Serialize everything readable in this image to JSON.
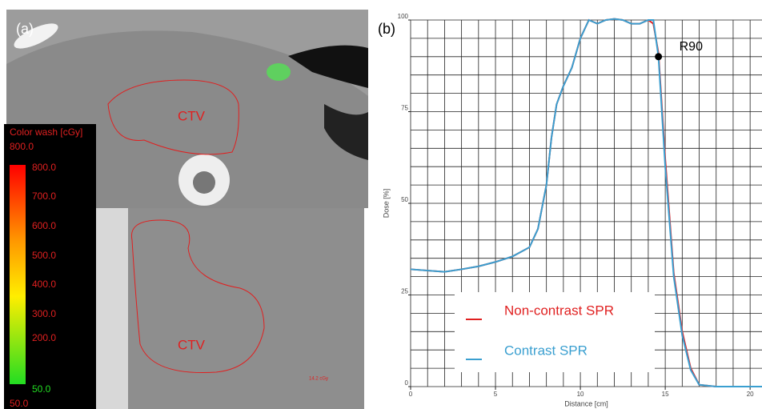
{
  "panel_a": {
    "label": "(a)",
    "colorwash": {
      "title": "Color wash [cGy]",
      "max_label": "800.0",
      "ticks": [
        "800.0",
        "700.0",
        "600.0",
        "500.0",
        "400.0",
        "300.0",
        "200.0",
        "50.0"
      ],
      "min_label": "50.0"
    },
    "regions": [
      "CTV",
      "CTV"
    ],
    "dose_label": "14.2 cGy"
  },
  "chart_data": {
    "type": "line",
    "panel_label": "(b)",
    "x_label": "Distance [cm]",
    "y_label": "Dose [%]",
    "x": [
      0,
      2,
      3,
      4,
      5,
      6,
      7,
      7.5,
      8,
      8.3,
      8.6,
      9,
      9.5,
      10,
      10.5,
      11,
      11.5,
      12,
      12.5,
      13,
      13.5,
      14,
      14.3,
      14.6,
      15,
      15.5,
      16,
      16.5,
      17,
      18,
      20,
      20.7
    ],
    "series": [
      {
        "name": "Non-contrast SPR",
        "color": "#e02020",
        "values": [
          32,
          31.3,
          32,
          32.8,
          34,
          35.5,
          38,
          43,
          55,
          68,
          77,
          82,
          87,
          95,
          100,
          99,
          100,
          100.3,
          100,
          99,
          99,
          100,
          99,
          91,
          62,
          31,
          15,
          5,
          0.5,
          0,
          0,
          0
        ]
      },
      {
        "name": "Contrast SPR",
        "color": "#3a9fd0",
        "values": [
          32,
          31.3,
          32,
          32.8,
          34,
          35.5,
          38,
          43,
          55,
          68,
          77,
          82,
          87,
          95,
          100,
          99,
          100,
          100.3,
          100,
          99,
          99,
          100,
          100,
          90,
          60,
          30,
          14,
          4.5,
          0.5,
          0,
          0,
          0
        ]
      }
    ],
    "annotations": [
      {
        "text": "R90",
        "x": 14.6,
        "y": 90
      }
    ],
    "xlim": [
      0,
      20.7
    ],
    "ylim": [
      0,
      100
    ],
    "xticks": [
      0,
      5,
      10,
      15,
      20
    ],
    "yticks": [
      0,
      25,
      50,
      75,
      100
    ],
    "grid": true,
    "x_grid_step": 1,
    "y_grid_step": 5,
    "legend": "lower left"
  }
}
